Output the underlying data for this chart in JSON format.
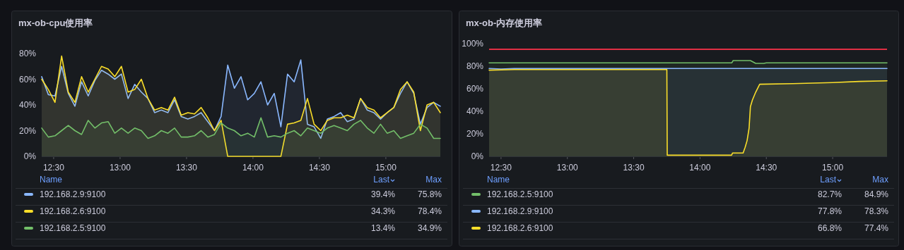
{
  "chart_data": [
    {
      "type": "area",
      "title": "mx-ob-cpu使用率",
      "legend": "bottom",
      "xlim": [
        12.41,
        15.41
      ],
      "ylim": [
        0,
        80
      ],
      "xticks": [
        {
          "value": 12.5,
          "label": "12:30"
        },
        {
          "value": 13,
          "label": "13:00"
        },
        {
          "value": 13.5,
          "label": "13:30"
        },
        {
          "value": 14,
          "label": "14:00"
        },
        {
          "value": 14.5,
          "label": "14:30"
        },
        {
          "value": 15,
          "label": "15:00"
        }
      ],
      "yticks": [
        {
          "value": 0,
          "label": "0%"
        },
        {
          "value": 20,
          "label": "20%"
        },
        {
          "value": 40,
          "label": "40%"
        },
        {
          "value": 60,
          "label": "60%"
        },
        {
          "value": 80,
          "label": "80%"
        }
      ],
      "x": [
        12.41,
        12.46,
        12.51,
        12.56,
        12.61,
        12.66,
        12.71,
        12.76,
        12.81,
        12.86,
        12.91,
        12.96,
        13.01,
        13.06,
        13.11,
        13.16,
        13.21,
        13.26,
        13.31,
        13.36,
        13.41,
        13.46,
        13.51,
        13.56,
        13.61,
        13.66,
        13.71,
        13.76,
        13.81,
        13.86,
        13.91,
        13.96,
        14.01,
        14.06,
        14.11,
        14.16,
        14.21,
        14.26,
        14.31,
        14.36,
        14.41,
        14.46,
        14.51,
        14.56,
        14.61,
        14.66,
        14.71,
        14.76,
        14.81,
        14.86,
        14.91,
        14.96,
        15.01,
        15.06,
        15.11,
        15.16,
        15.21,
        15.26,
        15.31,
        15.36,
        15.41
      ],
      "series": [
        {
          "name": "192.168.2.9:9100",
          "color": "#8ab8ff",
          "values": [
            62,
            48,
            47,
            70,
            49,
            39,
            58,
            47,
            59,
            67,
            64,
            60,
            64,
            45,
            56,
            50,
            45,
            34,
            36,
            34,
            44,
            31,
            29,
            31,
            34,
            27,
            20,
            31,
            71,
            53,
            62,
            44,
            49,
            58,
            40,
            49,
            23,
            64,
            58,
            75,
            25,
            23,
            14,
            29,
            31,
            34,
            27,
            29,
            45,
            36,
            34,
            29,
            34,
            38,
            49,
            58,
            49,
            25,
            38,
            42,
            39
          ]
        },
        {
          "name": "192.168.2.6:9100",
          "color": "#fade2a",
          "values": [
            60,
            52,
            42,
            78,
            50,
            42,
            62,
            50,
            60,
            70,
            68,
            62,
            70,
            50,
            52,
            60,
            45,
            36,
            38,
            36,
            46,
            32,
            34,
            33,
            38,
            30,
            20,
            28,
            0,
            0,
            0,
            0,
            0,
            0,
            0,
            0,
            0,
            25,
            26,
            28,
            45,
            25,
            20,
            28,
            30,
            30,
            32,
            30,
            45,
            38,
            36,
            30,
            34,
            38,
            52,
            58,
            50,
            20,
            40,
            42,
            34
          ]
        },
        {
          "name": "192.168.2.5:9100",
          "color": "#73bf69",
          "values": [
            22,
            15,
            16,
            20,
            24,
            20,
            17,
            28,
            22,
            26,
            27,
            18,
            22,
            18,
            22,
            20,
            14,
            16,
            20,
            18,
            22,
            15,
            15,
            16,
            20,
            15,
            17,
            26,
            22,
            20,
            16,
            18,
            15,
            30,
            15,
            16,
            15,
            18,
            20,
            16,
            22,
            20,
            18,
            22,
            24,
            22,
            20,
            25,
            28,
            22,
            18,
            25,
            18,
            20,
            14,
            16,
            18,
            25,
            22,
            14,
            14
          ]
        }
      ],
      "annotations": [
        "Name",
        "Last",
        "Max",
        "39.4%",
        "75.8%",
        "34.3%",
        "78.4%",
        "13.4%",
        "34.9%"
      ]
    },
    {
      "type": "area",
      "title": "mx-ob-内存使用率",
      "legend": "bottom",
      "xlim": [
        12.41,
        15.41
      ],
      "ylim": [
        0,
        100
      ],
      "xticks": [
        {
          "value": 12.5,
          "label": "12:30"
        },
        {
          "value": 13,
          "label": "13:00"
        },
        {
          "value": 13.5,
          "label": "13:30"
        },
        {
          "value": 14,
          "label": "14:00"
        },
        {
          "value": 14.5,
          "label": "14:30"
        },
        {
          "value": 15,
          "label": "15:00"
        }
      ],
      "yticks": [
        {
          "value": 0,
          "label": "0%"
        },
        {
          "value": 20,
          "label": "20%"
        },
        {
          "value": 40,
          "label": "40%"
        },
        {
          "value": 60,
          "label": "60%"
        },
        {
          "value": 80,
          "label": "80%"
        },
        {
          "value": 100,
          "label": "100%"
        }
      ],
      "ref_lines": [
        {
          "axis": "y",
          "value": 95,
          "color": "#e02f44"
        }
      ],
      "series": [
        {
          "name": "192.168.2.5:9100",
          "color": "#73bf69",
          "x": [
            12.41,
            14.24,
            14.25,
            14.38,
            14.42,
            14.48,
            14.5,
            15.41
          ],
          "values": [
            83,
            83,
            85,
            85,
            82.5,
            82.5,
            83,
            83
          ]
        },
        {
          "name": "192.168.2.9:9100",
          "color": "#8ab8ff",
          "x": [
            12.41,
            12.5,
            12.6,
            13.0,
            15.41
          ],
          "values": [
            78,
            77.5,
            78,
            78,
            78
          ]
        },
        {
          "name": "192.168.2.6:9100",
          "color": "#fade2a",
          "x": [
            12.41,
            12.6,
            13.2,
            13.5,
            13.75,
            13.753,
            14.238,
            14.245,
            14.325,
            14.34,
            14.355,
            14.37,
            14.38,
            14.395,
            14.42,
            14.45,
            14.7,
            15.0,
            15.2,
            15.41
          ],
          "values": [
            76.5,
            77,
            77,
            77,
            77,
            1,
            1,
            3,
            3,
            8,
            14,
            25,
            44,
            50,
            57,
            64,
            64.5,
            65.5,
            66.5,
            67
          ]
        }
      ],
      "annotations": [
        "Name",
        "Last",
        "Max",
        "82.7%",
        "84.9%",
        "77.8%",
        "78.3%",
        "66.8%",
        "77.4%"
      ]
    }
  ]
}
